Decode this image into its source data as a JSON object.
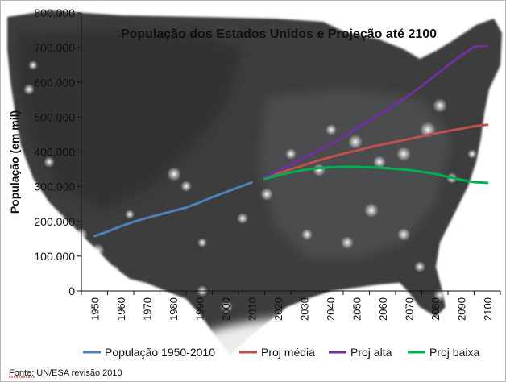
{
  "chart_data": {
    "type": "line",
    "title": "População dos Estados Unidos e Projeção até 2100",
    "xlabel": "",
    "ylabel": "População (em mil)",
    "ylim": [
      0,
      800000
    ],
    "yticks": [
      "0",
      "100.000",
      "200.000",
      "300.000",
      "400.000",
      "500.000",
      "600.000",
      "700.000",
      "800.000"
    ],
    "xticks": [
      "1950",
      "1960",
      "1970",
      "1980",
      "1990",
      "2000",
      "2010",
      "2020",
      "2030",
      "2040",
      "2050",
      "2060",
      "2070",
      "2080",
      "2090",
      "2100"
    ],
    "xlim": [
      1945,
      2105
    ],
    "grid": false,
    "legend_position": "bottom",
    "series": [
      {
        "name": "População 1950-2010",
        "color": "#4f81bd",
        "x": [
          1950,
          1955,
          1960,
          1965,
          1970,
          1975,
          1980,
          1985,
          1990,
          1995,
          2000,
          2005,
          2010
        ],
        "y": [
          158000,
          171000,
          186000,
          199000,
          210000,
          220000,
          230000,
          240000,
          254000,
          270000,
          284000,
          298000,
          312000
        ]
      },
      {
        "name": "Proj média",
        "color": "#c0504d",
        "x": [
          2015,
          2020,
          2025,
          2030,
          2035,
          2040,
          2045,
          2050,
          2055,
          2060,
          2065,
          2070,
          2075,
          2080,
          2085,
          2090,
          2095,
          2100
        ],
        "y": [
          325000,
          338000,
          350000,
          362000,
          374000,
          385000,
          395000,
          404000,
          413000,
          421000,
          429000,
          437000,
          445000,
          453000,
          460000,
          467000,
          474000,
          478000
        ]
      },
      {
        "name": "Proj alta",
        "color": "#7030a0",
        "x": [
          2015,
          2020,
          2025,
          2030,
          2035,
          2040,
          2045,
          2050,
          2055,
          2060,
          2065,
          2070,
          2075,
          2080,
          2085,
          2090,
          2095,
          2100
        ],
        "y": [
          327000,
          345000,
          364000,
          383000,
          402000,
          421000,
          443000,
          466000,
          490000,
          513000,
          537000,
          562000,
          590000,
          619000,
          649000,
          677000,
          703000,
          705000
        ]
      },
      {
        "name": "Proj baixa",
        "color": "#00b050",
        "x": [
          2015,
          2020,
          2025,
          2030,
          2035,
          2040,
          2045,
          2050,
          2055,
          2060,
          2065,
          2070,
          2075,
          2080,
          2085,
          2090,
          2095,
          2100
        ],
        "y": [
          322000,
          332000,
          341000,
          348000,
          353000,
          356000,
          357000,
          357000,
          356000,
          354000,
          351000,
          348000,
          343000,
          337000,
          328000,
          320000,
          313000,
          311000
        ]
      }
    ]
  },
  "source": "Fonte: UN/ESA revisão 2010"
}
